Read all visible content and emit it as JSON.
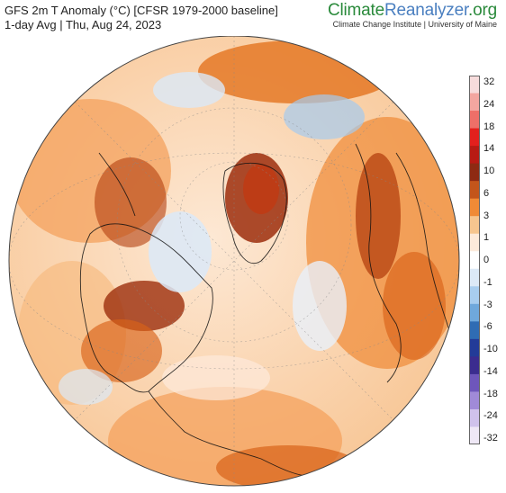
{
  "header": {
    "title": "GFS 2m T Anomaly (°C) [CFSR 1979-2000 baseline]",
    "subtitle": "1-day Avg | Thu, Aug 24, 2023"
  },
  "brand": {
    "name_part1": "Climate",
    "name_part2": "Reanalyzer",
    "name_part3": ".org",
    "subtitle": "Climate Change Institute | University of Maine"
  },
  "legend": {
    "labels": [
      "32",
      "24",
      "18",
      "14",
      "10",
      "6",
      "3",
      "1",
      "0",
      "-1",
      "-3",
      "-6",
      "-10",
      "-14",
      "-18",
      "-24",
      "-32"
    ],
    "colors": [
      "#f7dcdc",
      "#f3a6a0",
      "#ee6f68",
      "#e3201d",
      "#b81b14",
      "#8e2a12",
      "#c3551b",
      "#f08a36",
      "#f6c58f",
      "#fdeadb",
      "#ffffff",
      "#dce9f7",
      "#a8cdef",
      "#6fa8dc",
      "#2f6cb4",
      "#233b98",
      "#3b2c8f",
      "#6e56bb",
      "#a08ad8",
      "#d0c2ec",
      "#efe8f6"
    ]
  },
  "map_colors": {
    "ocean_light": "#fbe3cf",
    "warm": "#f4a25d",
    "hot": "#d96218",
    "very_hot": "#9c2e0d",
    "cool": "#dbe9f8",
    "cold": "#a5caee"
  }
}
